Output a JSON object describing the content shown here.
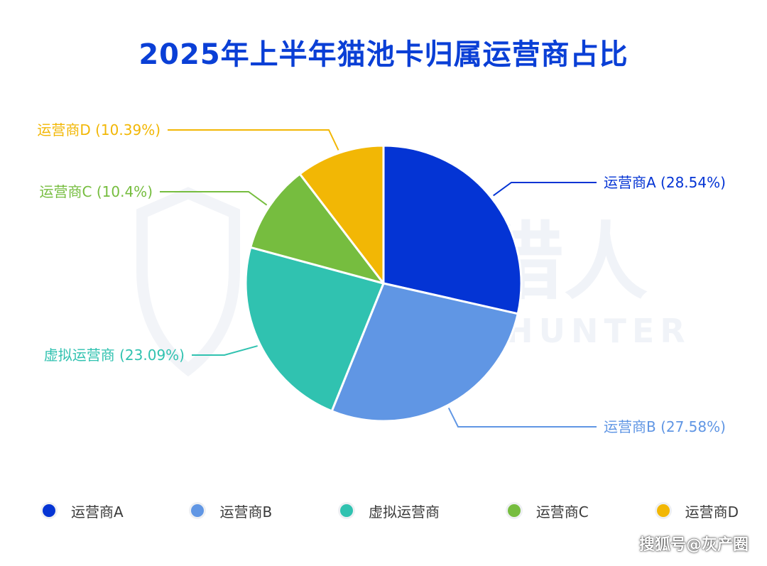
{
  "chart_data": {
    "type": "pie",
    "title": "2025年上半年猫池卡归属运营商占比",
    "slices": [
      {
        "label": "运营商A",
        "value": 28.54,
        "display": "运营商A (28.54%)",
        "color": "#0434d4"
      },
      {
        "label": "运营商B",
        "value": 27.58,
        "display": "运营商B (27.58%)",
        "color": "#6096e4"
      },
      {
        "label": "虚拟运营商",
        "value": 23.09,
        "display": "虚拟运营商 (23.09%)",
        "color": "#30c2b0"
      },
      {
        "label": "运营商C",
        "value": 10.4,
        "display": "运营商C (10.4%)",
        "color": "#76bd3f"
      },
      {
        "label": "运营商D",
        "value": 10.39,
        "display": "运营商D (10.39%)",
        "color": "#f2b705"
      }
    ],
    "legend_position": "bottom"
  },
  "watermark": {
    "brand_cn": "威胁猎人",
    "brand_en": "THREAT HUNTER"
  },
  "credit": "搜狐号@灰产圈"
}
